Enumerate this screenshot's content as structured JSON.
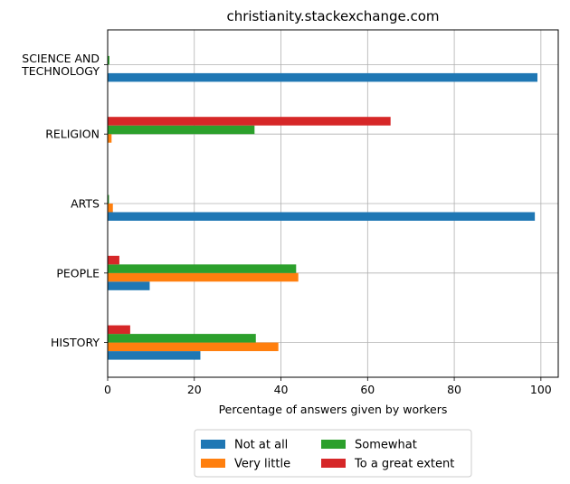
{
  "chart_data": {
    "type": "bar",
    "orientation": "horizontal",
    "title": "christianity.stackexchange.com",
    "xlabel": "Percentage of answers given by workers",
    "ylabel": "",
    "xlim": [
      0,
      104
    ],
    "xticks": [
      0,
      20,
      40,
      60,
      80,
      100
    ],
    "grid": true,
    "legend_position": "bottom-center",
    "categories": [
      [
        "SCIENCE AND",
        "TECHNOLOGY"
      ],
      [
        "RELIGION"
      ],
      [
        "ARTS"
      ],
      [
        "PEOPLE"
      ],
      [
        "HISTORY"
      ]
    ],
    "series": [
      {
        "name": "Not at all",
        "color": "#1f77b4",
        "values": [
          99.2,
          0,
          98.6,
          9.7,
          21.4
        ]
      },
      {
        "name": "Very little",
        "color": "#ff7f0e",
        "values": [
          0,
          0.9,
          1.2,
          44.0,
          39.4
        ]
      },
      {
        "name": "Somewhat",
        "color": "#2ca02c",
        "values": [
          0.4,
          33.9,
          0.3,
          43.5,
          34.2
        ]
      },
      {
        "name": "To a great extent",
        "color": "#d62728",
        "values": [
          0,
          65.3,
          0,
          2.7,
          5.2
        ]
      }
    ]
  }
}
